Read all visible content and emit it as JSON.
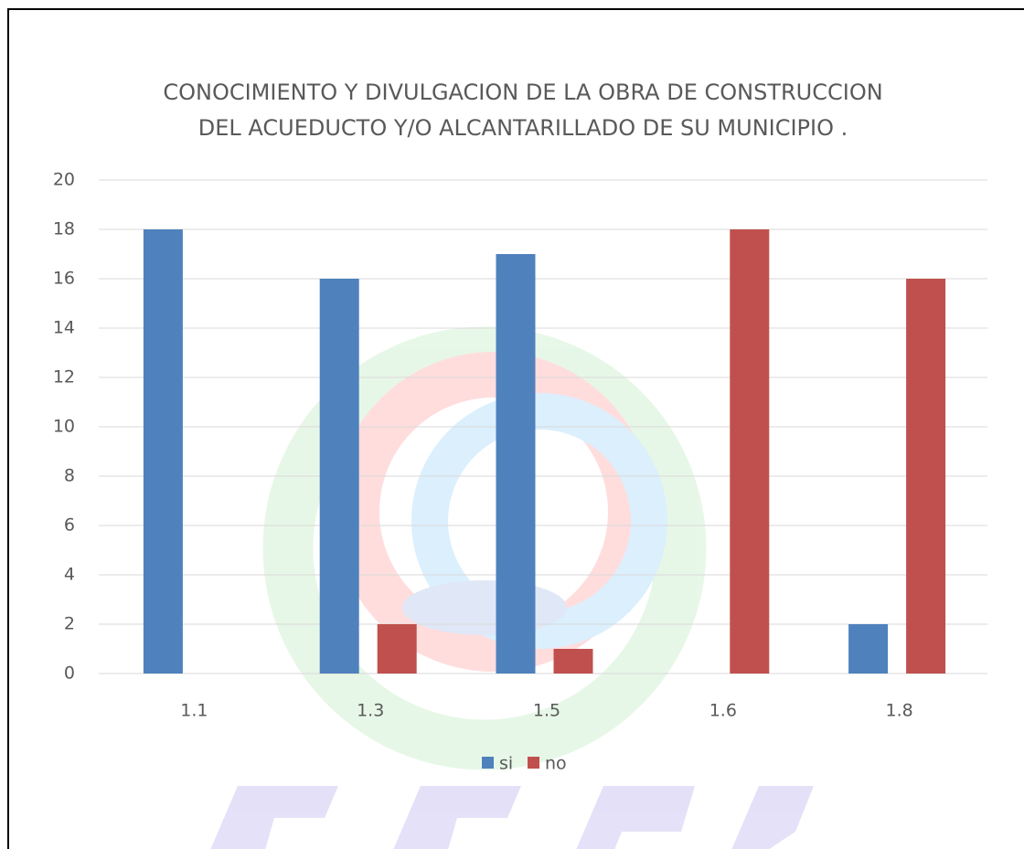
{
  "chart_data": {
    "type": "bar",
    "title": [
      "CONOCIMIENTO Y DIVULGACION DE LA OBRA DE CONSTRUCCION",
      "DEL  ACUEDUCTO Y/O ALCANTARILLADO DE SU MUNICIPIO ."
    ],
    "categories": [
      "1.1",
      "1.3",
      "1.5",
      "1.6",
      "1.8"
    ],
    "series": [
      {
        "name": "si",
        "color": "#4f81bd",
        "values": [
          18,
          16,
          17,
          0,
          2
        ]
      },
      {
        "name": "no",
        "color": "#c0504d",
        "values": [
          0,
          2,
          1,
          18,
          16
        ]
      }
    ],
    "ylim": [
      0,
      20
    ],
    "yticks": [
      0,
      2,
      4,
      6,
      8,
      10,
      12,
      14,
      16,
      18,
      20
    ],
    "grid": true,
    "legend": "bottom"
  }
}
